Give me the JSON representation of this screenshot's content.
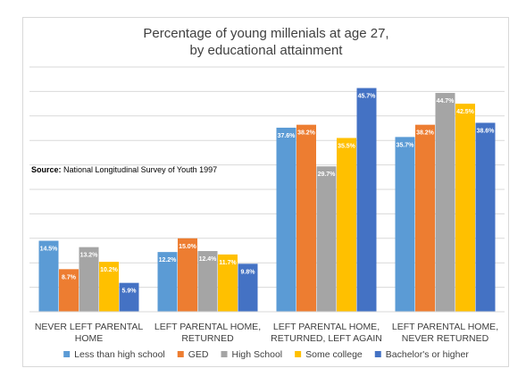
{
  "chart_data": {
    "type": "bar",
    "title": [
      "Percentage of young millenials at age 27,",
      "by educational attainment"
    ],
    "categories": [
      [
        "NEVER LEFT PARENTAL",
        "HOME"
      ],
      [
        "LEFT PARENTAL HOME,",
        "RETURNED"
      ],
      [
        "LEFT PARENTAL HOME,",
        "RETURNED, LEFT AGAIN"
      ],
      [
        "LEFT PARENTAL HOME,",
        "NEVER RETURNED"
      ]
    ],
    "series": [
      {
        "name": "Less than high school",
        "color": "#5b9bd5",
        "values": [
          14.5,
          12.2,
          37.6,
          35.7
        ],
        "labels": [
          "14.5%",
          "12.2%",
          "37.6%",
          "35.7%"
        ]
      },
      {
        "name": "GED",
        "color": "#ed7d31",
        "values": [
          8.7,
          15.0,
          38.2,
          38.2
        ],
        "labels": [
          "8.7%",
          "15.0%",
          "38.2%",
          "38.2%"
        ]
      },
      {
        "name": "High School",
        "color": "#a5a5a5",
        "values": [
          13.2,
          12.4,
          29.7,
          44.7
        ],
        "labels": [
          "13.2%",
          "12.4%",
          "29.7%",
          "44.7%"
        ]
      },
      {
        "name": "Some college",
        "color": "#ffc000",
        "values": [
          10.2,
          11.7,
          35.5,
          42.5
        ],
        "labels": [
          "10.2%",
          "11.7%",
          "35.5%",
          "42.5%"
        ]
      },
      {
        "name": "Bachelor's or higher",
        "color": "#4472c4",
        "values": [
          5.9,
          9.8,
          45.7,
          38.6
        ],
        "labels": [
          "5.9%",
          "9.8%",
          "45.7%",
          "38.6%"
        ]
      }
    ],
    "ylim": [
      0,
      50
    ],
    "grid": true,
    "legend": "bottom",
    "source": {
      "label": "Source:",
      "text": " National Longitudinal Survey of Youth 1997"
    }
  }
}
